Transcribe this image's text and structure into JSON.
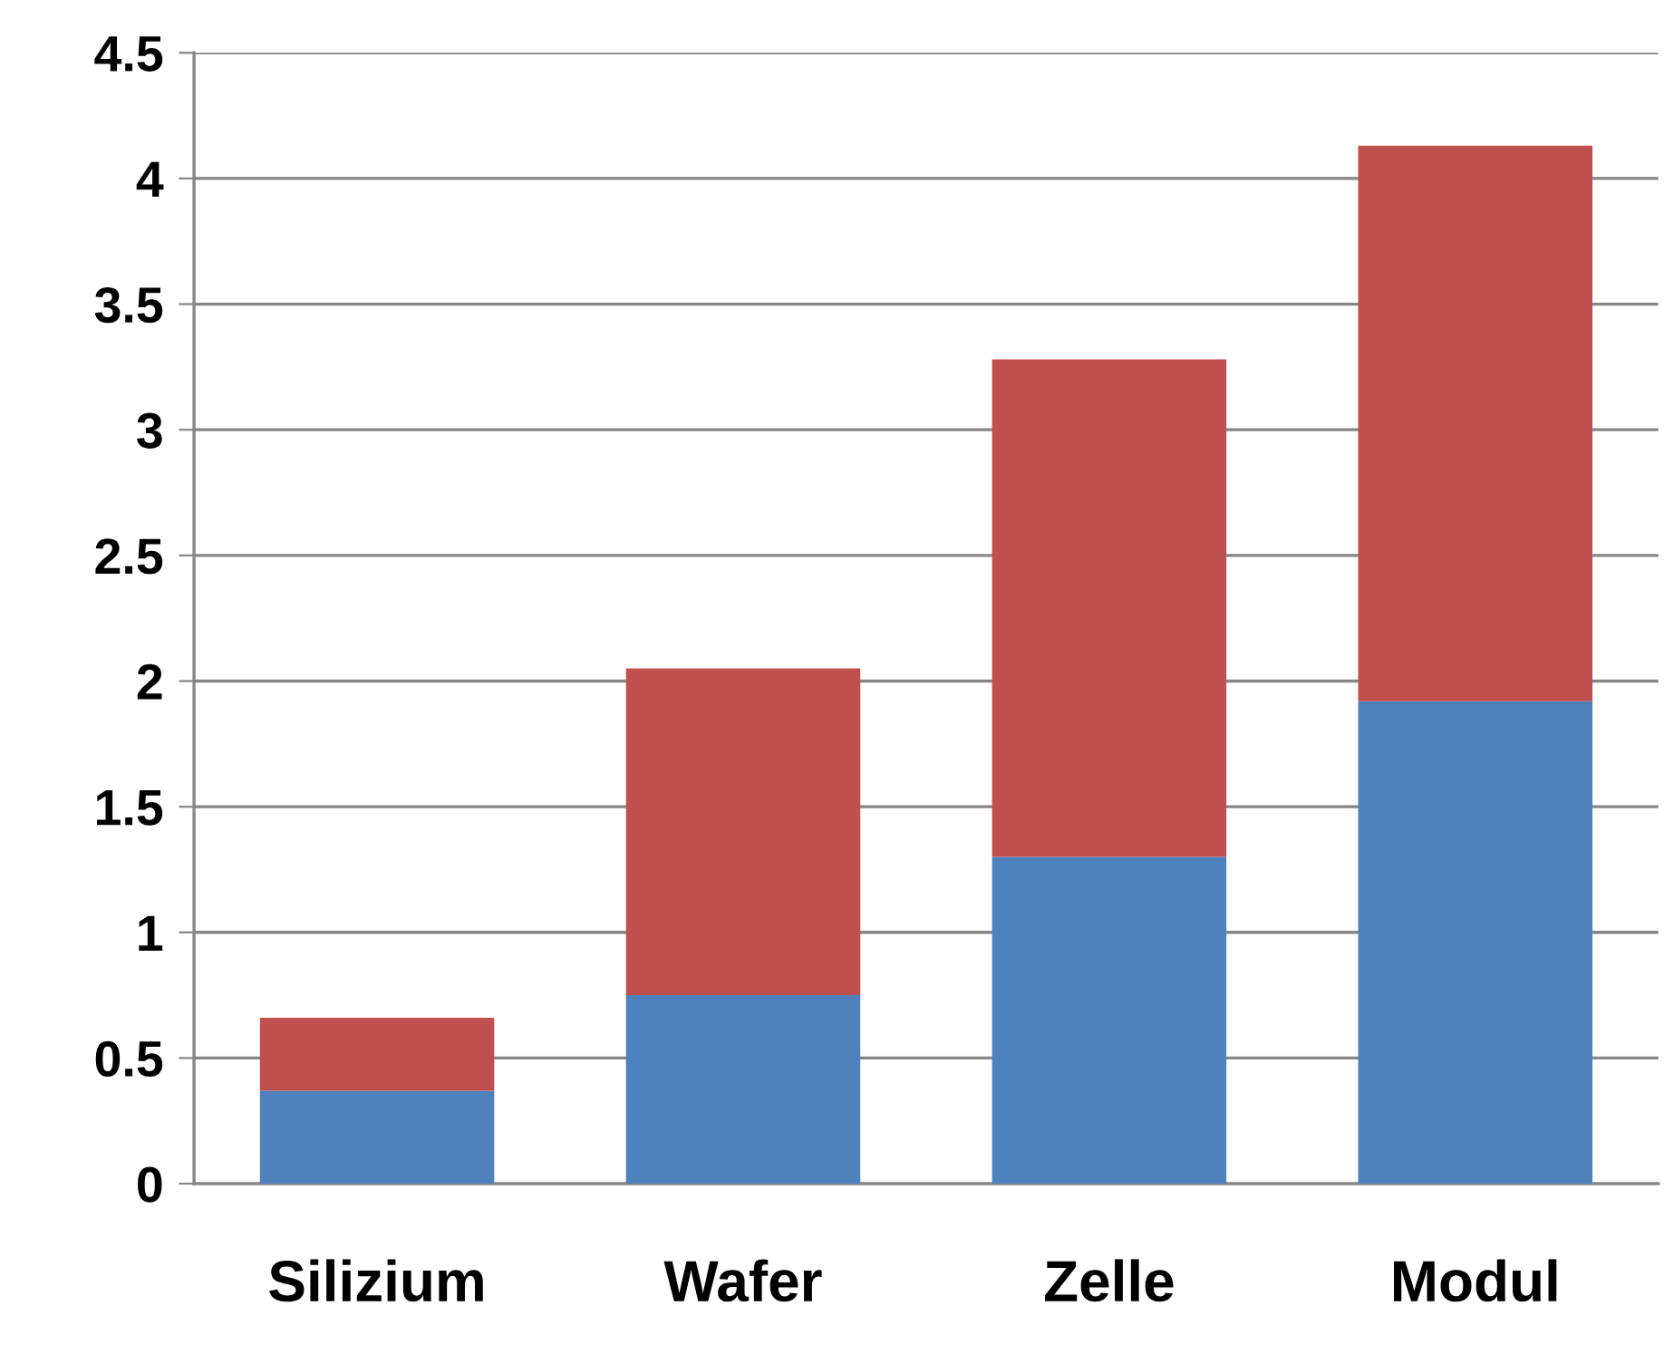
{
  "chart_data": {
    "type": "bar",
    "stacked": true,
    "categories": [
      "Silizium",
      "Wafer",
      "Zelle",
      "Modul"
    ],
    "series": [
      {
        "color": "#4f81bd",
        "values": [
          0.37,
          0.75,
          1.3,
          1.92
        ]
      },
      {
        "color": "#c0504d",
        "values": [
          0.29,
          1.3,
          1.98,
          2.21
        ]
      }
    ],
    "ylim": [
      0,
      4.5
    ],
    "yticks": [
      0,
      {
        "value": 0.5,
        "label": "0.5"
      },
      1,
      {
        "value": 1.5,
        "label": "1.5"
      },
      2,
      {
        "value": 2.5,
        "label": "2.5"
      },
      3,
      {
        "value": 3.5,
        "label": "3.5"
      },
      4,
      {
        "value": 4.5,
        "label": "4.5"
      }
    ],
    "grid": "y"
  }
}
